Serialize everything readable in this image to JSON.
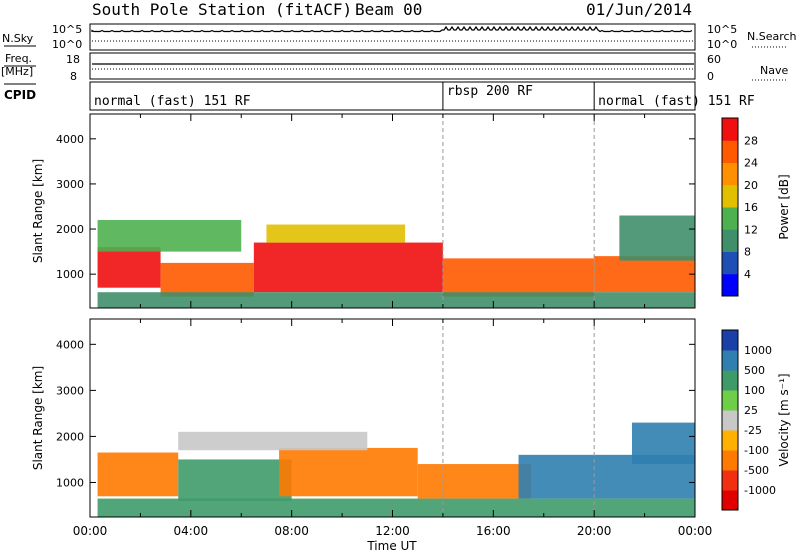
{
  "header": {
    "station": "South Pole Station (fitACF)",
    "beam": "Beam 00",
    "date": "01/Jun/2014"
  },
  "strip_labels": {
    "nsky": "N.Sky",
    "nsearch": "N.Search",
    "freq": "Freq.",
    "mhz": "[MHz]",
    "nave": "Nave",
    "cpid": "CPID",
    "ticks_left_top": [
      "10^5",
      "10^0"
    ],
    "ticks_right_top": [
      "10^5",
      "10^0"
    ],
    "ticks_left_freq": [
      "18",
      "8"
    ],
    "ticks_right_nave": [
      "60",
      "0"
    ]
  },
  "cpid_segments": [
    {
      "label": "normal (fast) 151 RF",
      "start_hour": 0,
      "end_hour": 14
    },
    {
      "label": "rbsp 200 RF",
      "start_hour": 14,
      "end_hour": 20
    },
    {
      "label": "normal (fast) 151 RF",
      "start_hour": 20,
      "end_hour": 24
    }
  ],
  "x_axis": {
    "label": "Time UT",
    "ticks": [
      "00:00",
      "04:00",
      "08:00",
      "12:00",
      "16:00",
      "20:00",
      "00:00"
    ],
    "range_hours": [
      0,
      24
    ]
  },
  "power_colorbar": {
    "label": "Power [dB]",
    "ticks": [
      "4",
      "8",
      "12",
      "16",
      "20",
      "24",
      "28"
    ],
    "colors": [
      "#0000ff",
      "#1f4fb5",
      "#3f8f6a",
      "#4fb050",
      "#e0c000",
      "#ff9000",
      "#ff5a00",
      "#f01010"
    ]
  },
  "velocity_colorbar": {
    "label": "Velocity [m s⁻¹]",
    "ticks": [
      "1000",
      "500",
      "100",
      "25",
      "-25",
      "-100",
      "-500",
      "-1000"
    ],
    "colors": [
      "#1a3fa8",
      "#2f7fb0",
      "#3f9a6a",
      "#6fce48",
      "#c8c8c8",
      "#ffb000",
      "#ff7a00",
      "#f03010",
      "#e00000"
    ]
  },
  "chart_data": [
    {
      "type": "heatmap",
      "title": "Power",
      "xlabel": "Time UT",
      "ylabel": "Slant Range [km]",
      "yticks": [
        "1000",
        "2000",
        "3000",
        "4000"
      ],
      "xlim": [
        0,
        24
      ],
      "ylim": [
        250,
        4550
      ],
      "colorbar": "Power [dB]",
      "clim": [
        0,
        32
      ],
      "bands": [
        {
          "start_hour": 0.3,
          "end_hour": 2.8,
          "range_low_km": 700,
          "range_high_km": 1600,
          "value_db": 28
        },
        {
          "start_hour": 2.8,
          "end_hour": 6.5,
          "range_low_km": 500,
          "range_high_km": 1250,
          "value_db": 27
        },
        {
          "start_hour": 6.5,
          "end_hour": 14.0,
          "range_low_km": 600,
          "range_high_km": 1700,
          "value_db": 28
        },
        {
          "start_hour": 14.0,
          "end_hour": 20.0,
          "range_low_km": 500,
          "range_high_km": 1350,
          "value_db": 27
        },
        {
          "start_hour": 20.0,
          "end_hour": 24.0,
          "range_low_km": 600,
          "range_high_km": 1400,
          "value_db": 26
        },
        {
          "start_hour": 0.3,
          "end_hour": 6.0,
          "range_low_km": 1500,
          "range_high_km": 2200,
          "value_db": 12
        },
        {
          "start_hour": 7.0,
          "end_hour": 12.5,
          "range_low_km": 1700,
          "range_high_km": 2100,
          "value_db": 16
        },
        {
          "start_hour": 0.3,
          "end_hour": 24.0,
          "range_low_km": 250,
          "range_high_km": 600,
          "value_db": 10
        },
        {
          "start_hour": 21.0,
          "end_hour": 24.0,
          "range_low_km": 1300,
          "range_high_km": 2300,
          "value_db": 8
        }
      ]
    },
    {
      "type": "heatmap",
      "title": "Velocity",
      "xlabel": "Time UT",
      "ylabel": "Slant Range [km]",
      "yticks": [
        "1000",
        "2000",
        "3000",
        "4000"
      ],
      "xlim": [
        0,
        24
      ],
      "ylim": [
        250,
        4550
      ],
      "colorbar": "Velocity [m s⁻¹]",
      "clim": [
        -1000,
        1000
      ],
      "bands": [
        {
          "start_hour": 0.3,
          "end_hour": 3.5,
          "range_low_km": 700,
          "range_high_km": 1650,
          "value_ms": -300
        },
        {
          "start_hour": 3.5,
          "end_hour": 8.0,
          "range_low_km": 600,
          "range_high_km": 1500,
          "value_ms": 200
        },
        {
          "start_hour": 7.5,
          "end_hour": 13.0,
          "range_low_km": 700,
          "range_high_km": 1750,
          "value_ms": -400
        },
        {
          "start_hour": 13.0,
          "end_hour": 17.5,
          "range_low_km": 650,
          "range_high_km": 1400,
          "value_ms": -200
        },
        {
          "start_hour": 17.0,
          "end_hour": 24.0,
          "range_low_km": 650,
          "range_high_km": 1600,
          "value_ms": 500
        },
        {
          "start_hour": 0.3,
          "end_hour": 24.0,
          "range_low_km": 250,
          "range_high_km": 650,
          "value_ms": 100
        },
        {
          "start_hour": 3.5,
          "end_hour": 11.0,
          "range_low_km": 1700,
          "range_high_km": 2100,
          "value_ms": 0
        },
        {
          "start_hour": 21.5,
          "end_hour": 24.0,
          "range_low_km": 1400,
          "range_high_km": 2300,
          "value_ms": 800
        }
      ]
    }
  ]
}
